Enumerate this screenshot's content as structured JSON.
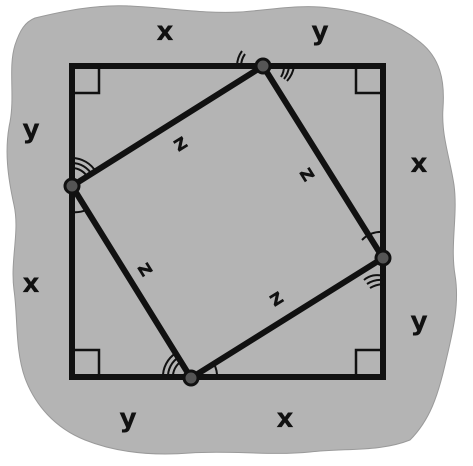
{
  "colors": {
    "background": "#ffffff",
    "blob": "#b4b4b4",
    "blob_outline": "#9a9a9a",
    "stroke": "#111111",
    "vertex_fill": "#555555"
  },
  "labels": {
    "top_left": "x",
    "top_right": "y",
    "right_upper": "x",
    "right_lower": "y",
    "bottom_right": "x",
    "bottom_left": "y",
    "left_lower": "x",
    "left_upper": "y",
    "inner_top": "z",
    "inner_right": "z",
    "inner_bottom": "z",
    "inner_left": "z"
  },
  "marks": {
    "right_angle_markers": 4,
    "inner_vertices": 4
  }
}
